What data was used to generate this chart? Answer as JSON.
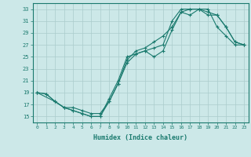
{
  "xlabel": "Humidex (Indice chaleur)",
  "bg_color": "#cce8e8",
  "grid_color": "#aacccc",
  "line_color": "#1a7a6e",
  "xlim": [
    -0.5,
    23.5
  ],
  "ylim": [
    14,
    34
  ],
  "xticks": [
    0,
    1,
    2,
    3,
    4,
    5,
    6,
    7,
    8,
    9,
    10,
    11,
    12,
    13,
    14,
    15,
    16,
    17,
    18,
    19,
    20,
    21,
    22,
    23
  ],
  "yticks": [
    15,
    17,
    19,
    21,
    23,
    25,
    27,
    29,
    31,
    33
  ],
  "line1_x": [
    0,
    1,
    2,
    3,
    4,
    5,
    6,
    7,
    8,
    9,
    10,
    11,
    12,
    13,
    14,
    15,
    16,
    17,
    18,
    19,
    20,
    21,
    22,
    23
  ],
  "line1_y": [
    19,
    18.8,
    17.5,
    16.5,
    16.5,
    16,
    15.5,
    15.5,
    17.5,
    20.5,
    24.5,
    26,
    26.5,
    27.5,
    28.5,
    30,
    32.5,
    33,
    33,
    33,
    30,
    28.5,
    27,
    27
  ],
  "line2_x": [
    0,
    1,
    2,
    3,
    4,
    5,
    6,
    7,
    8,
    9,
    10,
    11,
    12,
    13,
    14,
    15,
    16,
    17,
    18,
    19,
    20,
    21,
    22,
    23
  ],
  "line2_y": [
    19,
    18.8,
    17.5,
    16.5,
    16,
    15.5,
    15,
    15,
    18,
    21,
    25,
    25.5,
    26,
    26.5,
    27,
    31,
    33,
    33,
    33,
    32.5,
    32,
    30,
    27.5,
    27
  ],
  "line3_x": [
    0,
    2,
    3,
    4,
    5,
    6,
    7,
    8,
    9,
    10,
    11,
    12,
    13,
    14,
    15,
    16,
    17,
    18,
    19,
    20,
    21,
    22,
    23
  ],
  "line3_y": [
    19,
    17.5,
    16.5,
    16,
    15.5,
    15,
    15,
    17.5,
    20.5,
    24,
    25.5,
    26,
    25,
    26,
    29.5,
    32.5,
    32,
    33,
    32,
    32,
    30,
    27.5,
    27
  ]
}
